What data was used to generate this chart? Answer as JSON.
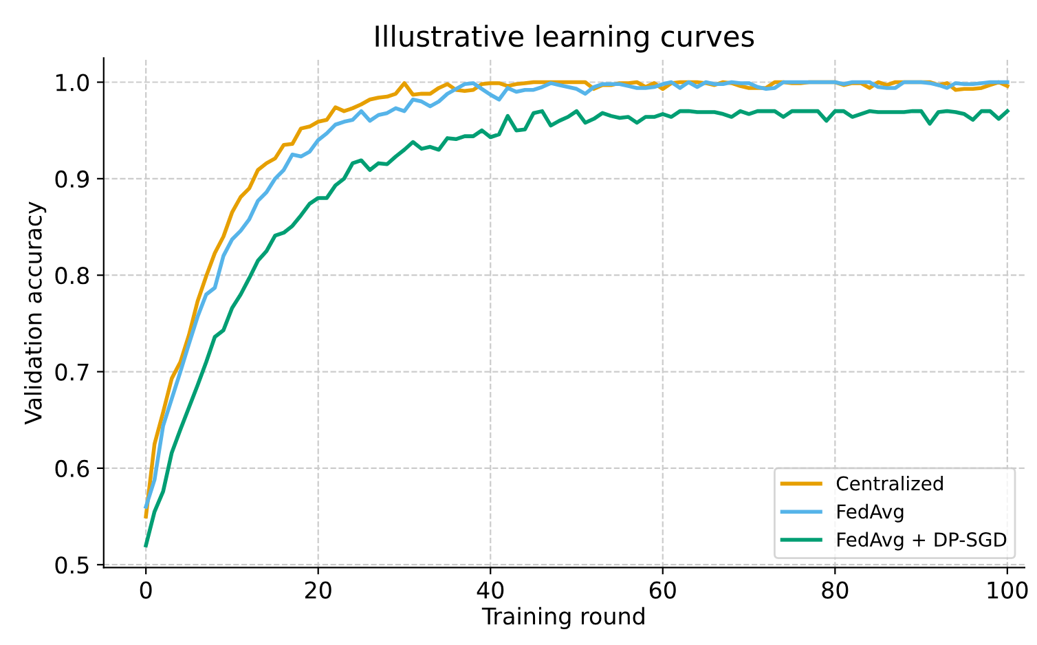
{
  "chart_data": {
    "type": "line",
    "title": "Illustrative learning curves",
    "xlabel": "Training round",
    "ylabel": "Validation accuracy",
    "x": [
      0,
      1,
      2,
      3,
      4,
      5,
      6,
      7,
      8,
      9,
      10,
      11,
      12,
      13,
      14,
      15,
      16,
      17,
      18,
      19,
      20,
      21,
      22,
      23,
      24,
      25,
      26,
      27,
      28,
      29,
      30,
      31,
      32,
      33,
      34,
      35,
      36,
      37,
      38,
      39,
      40,
      41,
      42,
      43,
      44,
      45,
      46,
      47,
      48,
      49,
      50,
      51,
      52,
      53,
      54,
      55,
      56,
      57,
      58,
      59,
      60,
      61,
      62,
      63,
      64,
      65,
      66,
      67,
      68,
      69,
      70,
      71,
      72,
      73,
      74,
      75,
      76,
      77,
      78,
      79,
      80,
      81,
      82,
      83,
      84,
      85,
      86,
      87,
      88,
      89,
      90,
      91,
      92,
      93,
      94,
      95,
      96,
      97,
      98,
      99,
      100
    ],
    "series": [
      {
        "name": "Centralized",
        "color": "#e69f00",
        "values": [
          0.55,
          0.625,
          0.658,
          0.693,
          0.71,
          0.738,
          0.773,
          0.799,
          0.823,
          0.84,
          0.865,
          0.881,
          0.89,
          0.909,
          0.916,
          0.921,
          0.935,
          0.936,
          0.952,
          0.954,
          0.959,
          0.961,
          0.974,
          0.97,
          0.973,
          0.977,
          0.982,
          0.984,
          0.985,
          0.988,
          0.999,
          0.987,
          0.988,
          0.988,
          0.994,
          0.998,
          0.992,
          0.991,
          0.992,
          0.998,
          0.999,
          0.999,
          0.996,
          0.998,
          0.999,
          1.0,
          1.0,
          1.0,
          1.0,
          1.0,
          1.0,
          1.0,
          0.993,
          0.997,
          0.997,
          0.999,
          0.999,
          1.0,
          0.995,
          0.999,
          0.993,
          0.999,
          1.0,
          1.0,
          1.0,
          0.999,
          0.997,
          1.0,
          0.999,
          0.996,
          0.994,
          0.994,
          0.994,
          1.0,
          1.0,
          0.999,
          0.999,
          1.0,
          1.0,
          1.0,
          1.0,
          0.997,
          0.999,
          0.999,
          0.994,
          1.0,
          0.997,
          1.0,
          1.0,
          1.0,
          1.0,
          1.0,
          0.997,
          0.999,
          0.992,
          0.993,
          0.993,
          0.994,
          0.997,
          1.0,
          0.996
        ]
      },
      {
        "name": "FedAvg",
        "color": "#56b4e9",
        "values": [
          0.56,
          0.588,
          0.644,
          0.672,
          0.7,
          0.729,
          0.757,
          0.78,
          0.787,
          0.82,
          0.837,
          0.846,
          0.858,
          0.877,
          0.886,
          0.9,
          0.909,
          0.925,
          0.923,
          0.928,
          0.94,
          0.947,
          0.956,
          0.959,
          0.961,
          0.97,
          0.96,
          0.966,
          0.968,
          0.973,
          0.97,
          0.982,
          0.98,
          0.975,
          0.98,
          0.988,
          0.993,
          0.998,
          0.999,
          0.993,
          0.987,
          0.982,
          0.994,
          0.99,
          0.992,
          0.992,
          0.995,
          0.999,
          0.997,
          0.995,
          0.993,
          0.988,
          0.995,
          0.998,
          0.998,
          0.998,
          0.996,
          0.994,
          0.994,
          0.995,
          0.998,
          1.0,
          0.994,
          1.0,
          0.995,
          1.0,
          0.998,
          0.998,
          1.0,
          0.999,
          0.999,
          0.995,
          0.993,
          0.994,
          1.0,
          1.0,
          1.0,
          1.0,
          1.0,
          1.0,
          1.0,
          0.998,
          1.0,
          1.0,
          1.0,
          0.995,
          0.994,
          0.994,
          1.0,
          1.0,
          1.0,
          0.999,
          0.997,
          0.994,
          0.999,
          0.998,
          0.998,
          0.999,
          1.0,
          1.0,
          1.0
        ]
      },
      {
        "name": "FedAvg + DP-SGD",
        "color": "#009e73",
        "values": [
          0.52,
          0.555,
          0.576,
          0.616,
          0.64,
          0.663,
          0.686,
          0.71,
          0.736,
          0.743,
          0.766,
          0.78,
          0.797,
          0.815,
          0.825,
          0.841,
          0.844,
          0.851,
          0.862,
          0.874,
          0.88,
          0.88,
          0.893,
          0.9,
          0.916,
          0.919,
          0.909,
          0.916,
          0.915,
          0.923,
          0.93,
          0.938,
          0.931,
          0.933,
          0.93,
          0.942,
          0.941,
          0.944,
          0.944,
          0.95,
          0.943,
          0.946,
          0.965,
          0.95,
          0.951,
          0.968,
          0.97,
          0.955,
          0.96,
          0.964,
          0.97,
          0.958,
          0.962,
          0.968,
          0.965,
          0.963,
          0.964,
          0.958,
          0.964,
          0.964,
          0.967,
          0.964,
          0.97,
          0.97,
          0.969,
          0.969,
          0.969,
          0.967,
          0.964,
          0.97,
          0.967,
          0.97,
          0.97,
          0.97,
          0.964,
          0.97,
          0.97,
          0.97,
          0.97,
          0.96,
          0.97,
          0.97,
          0.964,
          0.967,
          0.97,
          0.969,
          0.969,
          0.969,
          0.969,
          0.97,
          0.97,
          0.957,
          0.969,
          0.97,
          0.969,
          0.967,
          0.961,
          0.97,
          0.97,
          0.962,
          0.97
        ]
      }
    ],
    "xlim": [
      -4.9,
      102
    ],
    "ylim": [
      0.497,
      1.025
    ],
    "xticks": [
      0,
      20,
      40,
      60,
      80,
      100
    ],
    "yticks": [
      {
        "value": 0.5,
        "label": "0.5"
      },
      {
        "value": 0.6,
        "label": "0.6"
      },
      {
        "value": 0.7,
        "label": "0.7"
      },
      {
        "value": 0.8,
        "label": "0.8"
      },
      {
        "value": 0.9,
        "label": "0.9"
      },
      {
        "value": 1.0,
        "label": "1.0"
      }
    ],
    "grid": true,
    "legend": "bottom right",
    "line_style": "solid",
    "marker": "none"
  }
}
